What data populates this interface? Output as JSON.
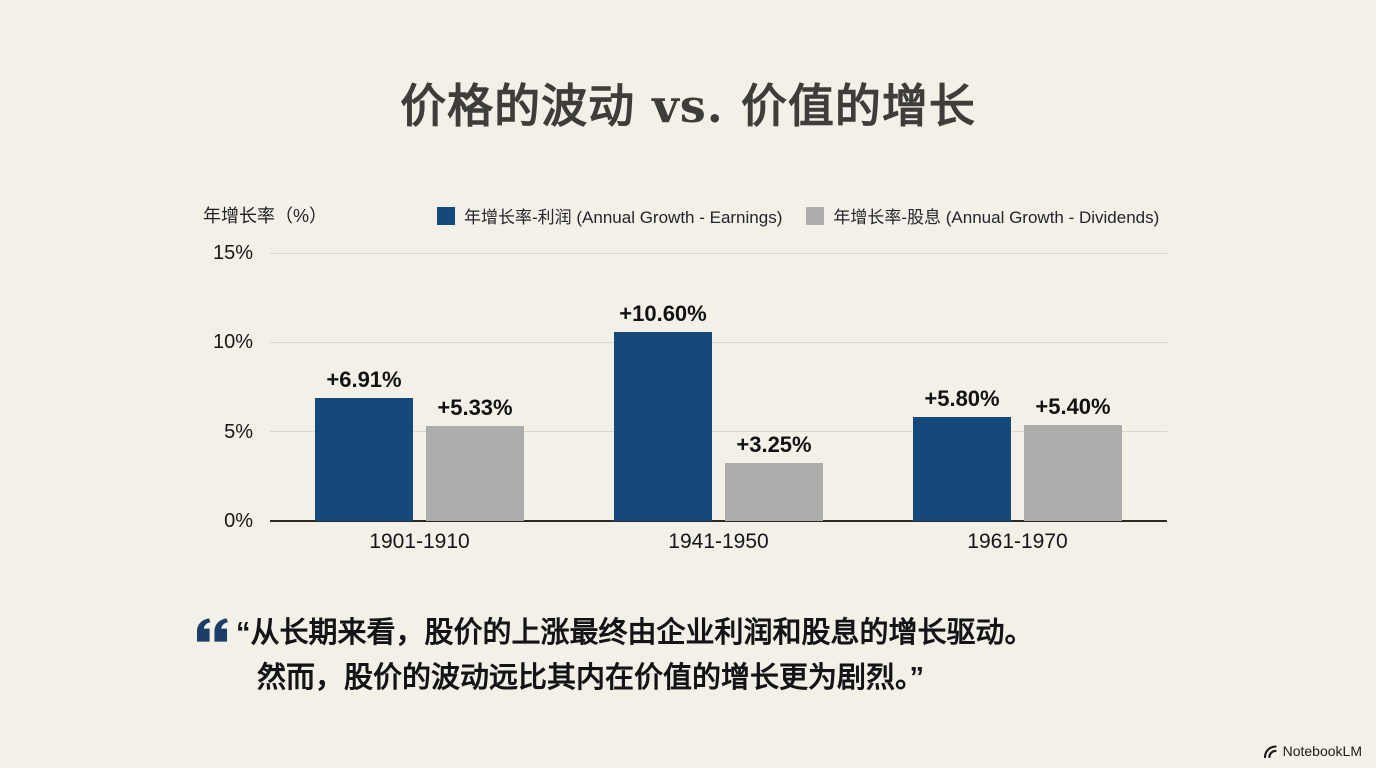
{
  "slide": {
    "title": "价格的波动 vs. 价值的增长",
    "quote": {
      "line1": "“从长期来看，股价的上涨最终由企业利润和股息的增长驱动。",
      "line2": "然而，股价的波动远比其内在价值的增长更为剧烈。”"
    },
    "watermark": "NotebookLM"
  },
  "chart_data": {
    "type": "bar",
    "title": "",
    "ylabel": "年增长率（%）",
    "categories": [
      "1901-1910",
      "1941-1950",
      "1961-1970"
    ],
    "series": [
      {
        "name": "年增长率-利润 (Annual Growth - Earnings)",
        "color": "#15497B",
        "values": [
          6.91,
          10.6,
          5.8
        ],
        "labels": [
          "+6.91%",
          "+10.60%",
          "+5.80%"
        ]
      },
      {
        "name": "年增长率-股息 (Annual Growth - Dividends)",
        "color": "#ACACAA",
        "values": [
          5.33,
          3.25,
          5.4
        ],
        "labels": [
          "+5.33%",
          "+3.25%",
          "+5.40%"
        ]
      }
    ],
    "ylim": [
      0,
      15
    ],
    "yticks": [
      0,
      5,
      10,
      15
    ],
    "ytick_labels": [
      "0%",
      "5%",
      "10%",
      "15%"
    ],
    "grid": "horizontal",
    "legend_position": "top"
  }
}
